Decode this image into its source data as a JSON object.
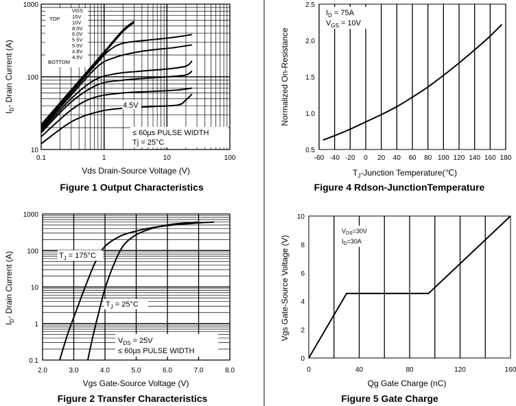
{
  "chart_data": [
    {
      "id": "fig1",
      "type": "line",
      "title": "Figure 1 Output Characteristics",
      "xlabel": "Vds Drain-Source Voltage (V)",
      "ylabel": "ID- Drain Current (A)",
      "ylabel_main": "- Drain Current (A)",
      "ylabel_sub": "D",
      "ylabel_prefix": "I",
      "xscale": "log",
      "yscale": "log",
      "xlim": [
        0.1,
        100
      ],
      "ylim": [
        10,
        1000
      ],
      "xticks": [
        "0.1",
        "1",
        "10",
        "100"
      ],
      "yticks": [
        "10",
        "100",
        "1000"
      ],
      "legend_top": "TOP",
      "legend_bottom": "BOTTOM",
      "legend_header": "VGS",
      "legend_items": [
        "15V",
        "10V",
        "8.0V",
        "6.0V",
        "5.5V",
        "5.0V",
        "4.8V",
        "4.5V"
      ],
      "curve_label": "4.5V",
      "note1": "≤ 60µs PULSE WIDTH",
      "note2": "Tj = 25°C",
      "series": [
        {
          "name": "15V",
          "x": [
            0.1,
            0.2,
            0.5,
            1,
            2,
            3
          ],
          "y": [
            22,
            44,
            110,
            220,
            440,
            580
          ]
        },
        {
          "name": "10V",
          "x": [
            0.1,
            0.2,
            0.5,
            1,
            2,
            3
          ],
          "y": [
            21,
            42,
            105,
            210,
            420,
            560
          ]
        },
        {
          "name": "8.0V",
          "x": [
            0.1,
            0.3,
            0.8,
            1.2,
            2,
            5,
            10,
            25
          ],
          "y": [
            20,
            60,
            160,
            230,
            290,
            320,
            340,
            380
          ]
        },
        {
          "name": "6.0V",
          "x": [
            0.1,
            0.3,
            0.8,
            1.5,
            3,
            6,
            12,
            25
          ],
          "y": [
            19,
            56,
            140,
            185,
            215,
            235,
            250,
            275
          ]
        },
        {
          "name": "5.5V",
          "x": [
            0.1,
            0.3,
            0.7,
            1.5,
            4,
            10,
            20,
            25
          ],
          "y": [
            18,
            50,
            90,
            110,
            120,
            128,
            140,
            165
          ]
        },
        {
          "name": "5.0V",
          "x": [
            0.1,
            0.3,
            0.8,
            2,
            5,
            10,
            20,
            25
          ],
          "y": [
            17,
            45,
            78,
            90,
            96,
            100,
            106,
            120
          ]
        },
        {
          "name": "4.8V",
          "x": [
            0.1,
            0.3,
            0.7,
            2,
            6,
            15,
            25
          ],
          "y": [
            15,
            35,
            52,
            60,
            63,
            66,
            70
          ]
        },
        {
          "name": "4.5V",
          "x": [
            0.1,
            0.3,
            0.8,
            2,
            6,
            15,
            20,
            25
          ],
          "y": [
            12,
            24,
            33,
            37,
            39,
            41,
            48,
            58
          ]
        }
      ]
    },
    {
      "id": "fig4",
      "type": "line",
      "title": "Figure 4 Rdson-JunctionTemperature",
      "xlabel": "Tⱼ-Junction Temperature(℃)",
      "xlabel_prefix": "T",
      "xlabel_sub": "J",
      "xlabel_main": "-Junction Temperature(℃)",
      "ylabel": "Normalized On-Resistance",
      "xlim": [
        -60,
        180
      ],
      "ylim": [
        0.5,
        2.5
      ],
      "xticks": [
        "-60",
        "-40",
        "-20",
        "0",
        "20",
        "40",
        "60",
        "80",
        "100",
        "120",
        "140",
        "160",
        "180"
      ],
      "yticks": [
        "0.5",
        "1.0",
        "1.5",
        "2.0",
        "2.5"
      ],
      "ann_id": "ID = 75A",
      "ann_id_prefix": "I",
      "ann_id_sub": "D",
      "ann_id_main": " = 75A",
      "ann_vgs_prefix": "V",
      "ann_vgs_sub": "GS",
      "ann_vgs_main": " = 10V",
      "series": [
        {
          "name": "Rdson",
          "x": [
            -55,
            -40,
            -20,
            0,
            20,
            40,
            60,
            80,
            100,
            120,
            140,
            160,
            175
          ],
          "y": [
            0.63,
            0.69,
            0.78,
            0.88,
            0.98,
            1.09,
            1.22,
            1.36,
            1.52,
            1.69,
            1.87,
            2.06,
            2.22
          ]
        }
      ]
    },
    {
      "id": "fig2",
      "type": "line",
      "title": "Figure 2 Transfer Characteristics",
      "xlabel": "Vgs Gate-Source Voltage (V)",
      "ylabel_prefix": "I",
      "ylabel_sub": "D",
      "ylabel_main": "- Drain Current (A)",
      "yscale": "log",
      "xlim": [
        2.0,
        8.0
      ],
      "ylim": [
        0.1,
        1000
      ],
      "xticks": [
        "2.0",
        "3.0",
        "4.0",
        "5.0",
        "6.0",
        "7.0",
        "8.0"
      ],
      "yticks": [
        "0.1",
        "1",
        "10",
        "100",
        "1000"
      ],
      "label_hot_prefix": "T",
      "label_hot_sub": "J",
      "label_hot_main": " = 175°C",
      "label_cold_prefix": "T",
      "label_cold_sub": "J",
      "label_cold_main": " = 25°C",
      "note_vds_prefix": "V",
      "note_vds_sub": "DS",
      "note_vds_main": " = 25V",
      "note_pulse": "≤ 60µs PULSE WIDTH",
      "series": [
        {
          "name": "TJ = 175°C",
          "x": [
            2.55,
            2.8,
            3.1,
            3.4,
            3.7,
            4.0,
            4.5,
            5.0,
            5.5,
            6.0,
            6.5,
            7.0,
            7.5
          ],
          "y": [
            0.1,
            0.5,
            2.5,
            12,
            50,
            130,
            250,
            340,
            420,
            480,
            530,
            570,
            600
          ]
        },
        {
          "name": "TJ = 25°C",
          "x": [
            3.45,
            3.6,
            3.8,
            4.0,
            4.3,
            4.6,
            5.0,
            5.5,
            6.0,
            6.5,
            7.0
          ],
          "y": [
            0.1,
            0.4,
            2.0,
            9,
            45,
            140,
            270,
            400,
            500,
            560,
            600
          ]
        }
      ]
    },
    {
      "id": "fig5",
      "type": "line",
      "title": "Figure 5 Gate Charge",
      "xlabel": "Qg Gate Charge (nC)",
      "ylabel": "Vgs Gate-Source Voltage (V)",
      "xlim": [
        0,
        160
      ],
      "ylim": [
        0,
        10
      ],
      "xticks": [
        "0",
        "40",
        "80",
        "120",
        "160"
      ],
      "yticks": [
        "0",
        "2",
        "4",
        "6",
        "8",
        "10"
      ],
      "ann_vds_prefix": "V",
      "ann_vds_sub": "DS",
      "ann_vds_main": "=30V",
      "ann_id_prefix": "I",
      "ann_id_sub": "D",
      "ann_id_main": "=30A",
      "series": [
        {
          "name": "Vgs",
          "x": [
            0,
            30,
            95,
            160
          ],
          "y": [
            0,
            4.55,
            4.55,
            10
          ]
        }
      ]
    }
  ]
}
